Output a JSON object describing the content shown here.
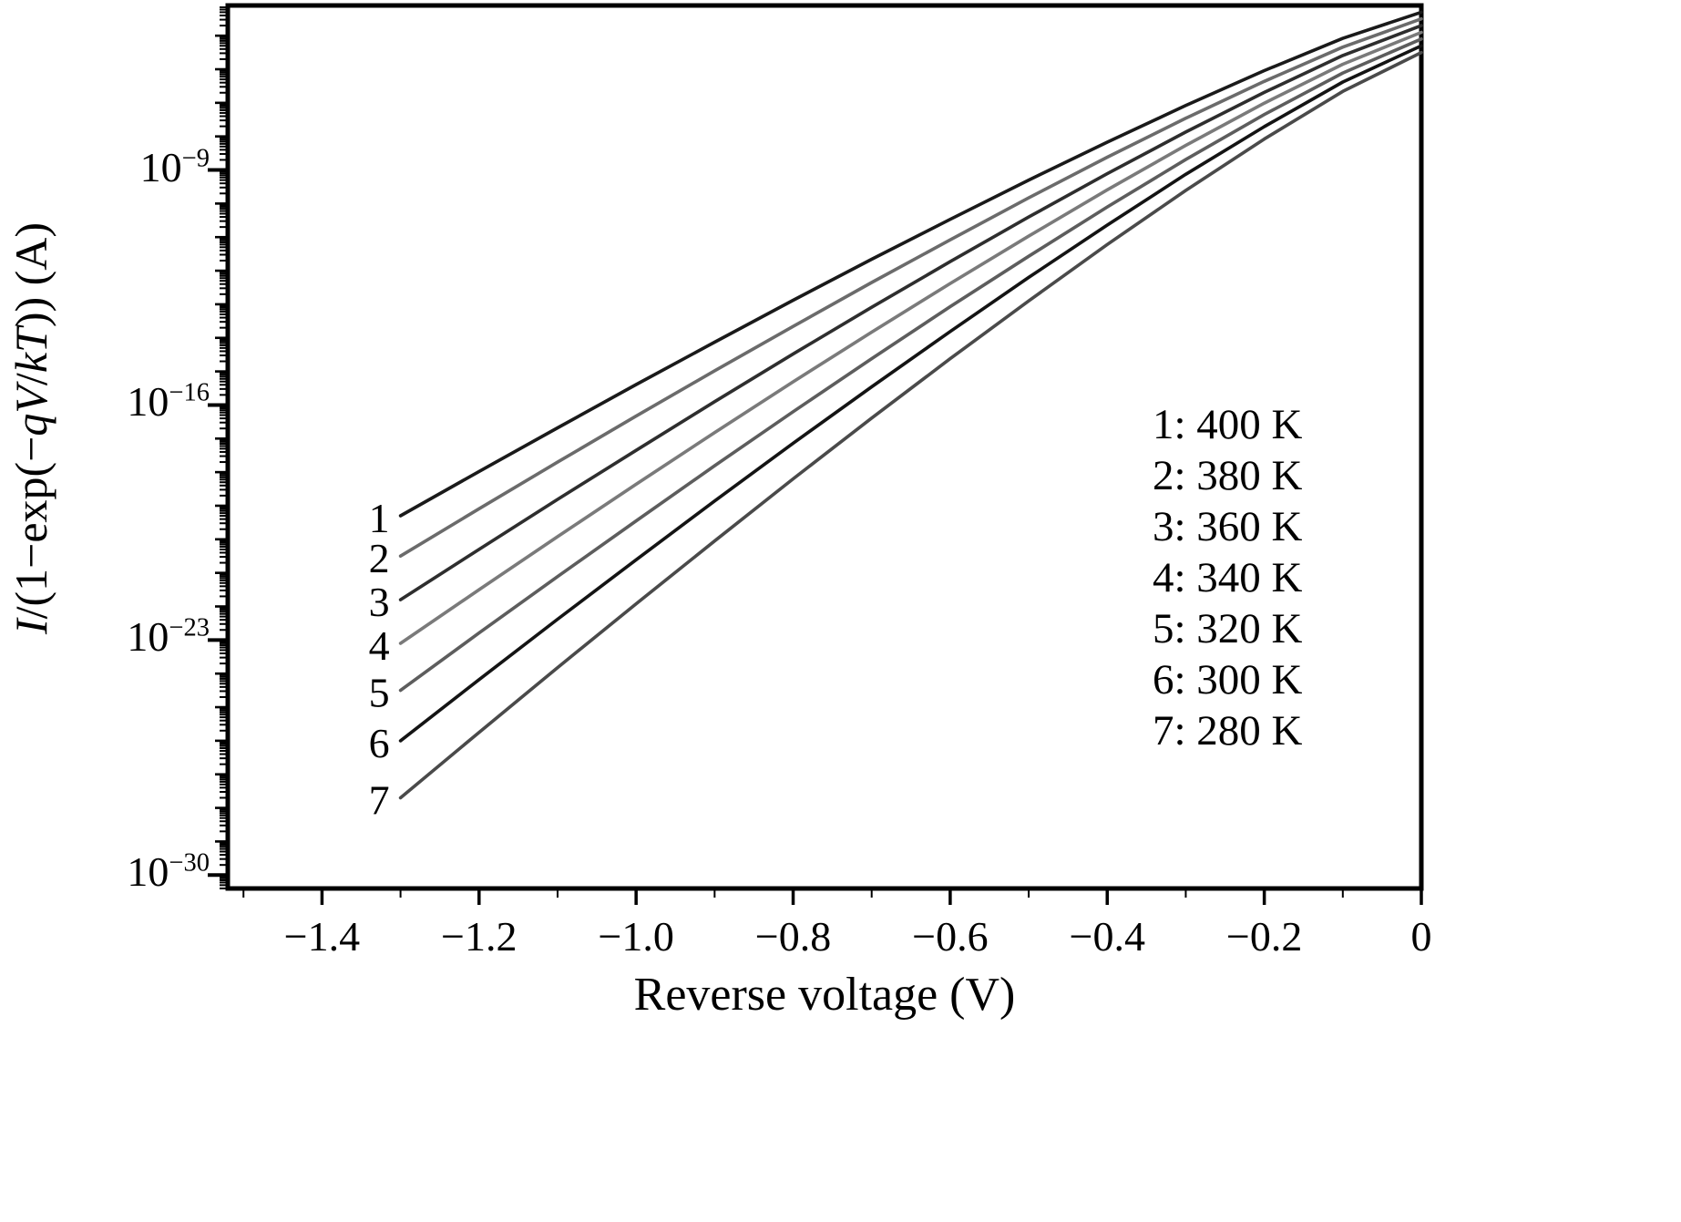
{
  "figure": {
    "background": "#ffffff",
    "axis_color": "#000000"
  },
  "chart_data": {
    "type": "line",
    "title": "",
    "xlabel": "Reverse voltage (V)",
    "ylabel_parts": [
      {
        "text": "I",
        "italic": true
      },
      {
        "text": "/(1−exp(−",
        "italic": false
      },
      {
        "text": "qV",
        "italic": true
      },
      {
        "text": "/",
        "italic": false
      },
      {
        "text": "kT",
        "italic": true
      },
      {
        "text": ")) (A)",
        "italic": false
      }
    ],
    "x_range": [
      -1.52,
      0
    ],
    "y_log_range": [
      -30.4,
      -4.1
    ],
    "x_ticks": [
      -1.4,
      -1.2,
      -1.0,
      -0.8,
      -0.6,
      -0.4,
      -0.2,
      0
    ],
    "x_tick_labels": [
      "−1.4",
      "−1.2",
      "−1.0",
      "−0.8",
      "−0.6",
      "−0.4",
      "−0.2",
      "0"
    ],
    "x_minor_step": 0.1,
    "y_label_exponents": [
      -9,
      -16,
      -23,
      -30
    ],
    "grid": false,
    "legend_position": "inside-right",
    "legend": [
      "1: 400 K",
      "2: 380 K",
      "3: 360 K",
      "4: 340 K",
      "5: 320 K",
      "6: 300 K",
      "7: 280 K"
    ],
    "x": [
      -1.3,
      -1.2,
      -1.1,
      -1.0,
      -0.9,
      -0.8,
      -0.7,
      -0.6,
      -0.5,
      -0.4,
      -0.3,
      -0.2,
      -0.1,
      0
    ],
    "series": [
      {
        "label": "1",
        "name": "400 K",
        "color": "#1a1a1a",
        "log10_values": [
          -19.3,
          -17.98,
          -16.68,
          -15.39,
          -14.13,
          -12.88,
          -11.66,
          -10.47,
          -9.3,
          -8.17,
          -7.08,
          -6.04,
          -5.08,
          -4.3
        ]
      },
      {
        "label": "2",
        "name": "380 K",
        "color": "#6b6b6b",
        "log10_values": [
          -20.5,
          -19.09,
          -17.7,
          -16.33,
          -14.98,
          -13.66,
          -12.35,
          -11.08,
          -9.83,
          -8.62,
          -7.46,
          -6.36,
          -5.34,
          -4.5
        ]
      },
      {
        "label": "3",
        "name": "360 K",
        "color": "#2e2e2e",
        "log10_values": [
          -21.8,
          -20.3,
          -18.81,
          -17.35,
          -15.9,
          -14.48,
          -13.09,
          -11.73,
          -10.4,
          -9.11,
          -7.87,
          -6.69,
          -5.59,
          -4.7
        ]
      },
      {
        "label": "4",
        "name": "340 K",
        "color": "#7a7a7a",
        "log10_values": [
          -23.1,
          -21.5,
          -19.92,
          -18.36,
          -16.82,
          -15.31,
          -13.83,
          -12.38,
          -10.97,
          -9.59,
          -8.27,
          -7.01,
          -5.85,
          -4.9
        ]
      },
      {
        "label": "5",
        "name": "320 K",
        "color": "#5d5d5d",
        "log10_values": [
          -24.5,
          -22.79,
          -21.11,
          -19.45,
          -17.81,
          -16.2,
          -14.62,
          -13.07,
          -11.57,
          -10.1,
          -8.69,
          -7.35,
          -6.11,
          -5.1
        ]
      },
      {
        "label": "6",
        "name": "300 K",
        "color": "#141414",
        "log10_values": [
          -26.0,
          -24.18,
          -22.38,
          -20.61,
          -18.86,
          -17.14,
          -15.46,
          -13.81,
          -12.2,
          -10.64,
          -9.13,
          -7.71,
          -6.38,
          -5.3
        ]
      },
      {
        "label": "7",
        "name": "280 K",
        "color": "#4a4a4a",
        "log10_values": [
          -27.7,
          -25.75,
          -23.82,
          -21.92,
          -20.05,
          -18.2,
          -16.39,
          -14.62,
          -12.9,
          -11.22,
          -9.61,
          -8.08,
          -6.66,
          -5.5
        ]
      }
    ]
  }
}
